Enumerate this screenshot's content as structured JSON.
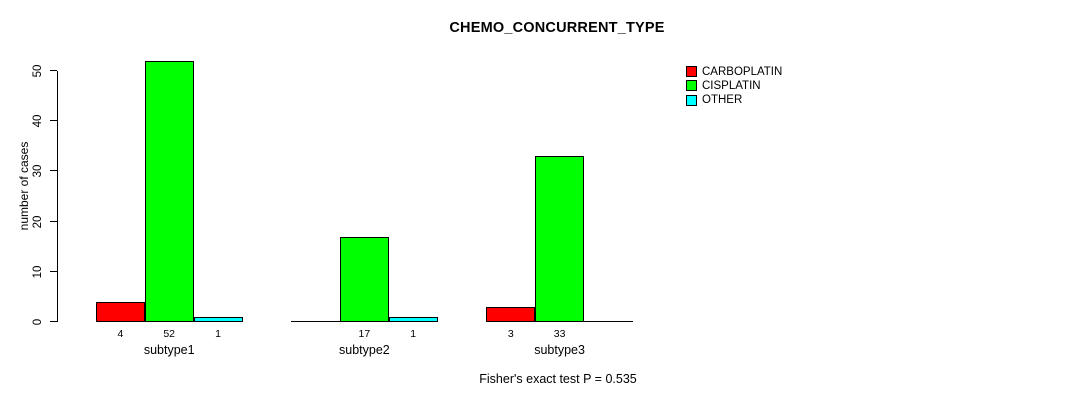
{
  "chart_data": {
    "type": "bar",
    "title": "CHEMO_CONCURRENT_TYPE",
    "ylabel": "number of cases",
    "xlabel": "",
    "categories": [
      "subtype1",
      "subtype2",
      "subtype3"
    ],
    "series": [
      {
        "name": "CARBOPLATIN",
        "color": "#ff0000",
        "values": [
          4,
          0,
          3
        ]
      },
      {
        "name": "CISPLATIN",
        "color": "#00ff00",
        "values": [
          52,
          17,
          33
        ]
      },
      {
        "name": "OTHER",
        "color": "#00ffff",
        "values": [
          1,
          1,
          0
        ]
      }
    ],
    "yticks": [
      0,
      10,
      20,
      30,
      40,
      50
    ],
    "ylim": [
      0,
      52
    ],
    "grid": false,
    "legend_position": "top-right",
    "bar_value_labels": "values shown below each non-zero bar",
    "annotation": "Fisher's exact test P = 0.535",
    "background": "#ffffff",
    "axis_color": "#000000"
  }
}
